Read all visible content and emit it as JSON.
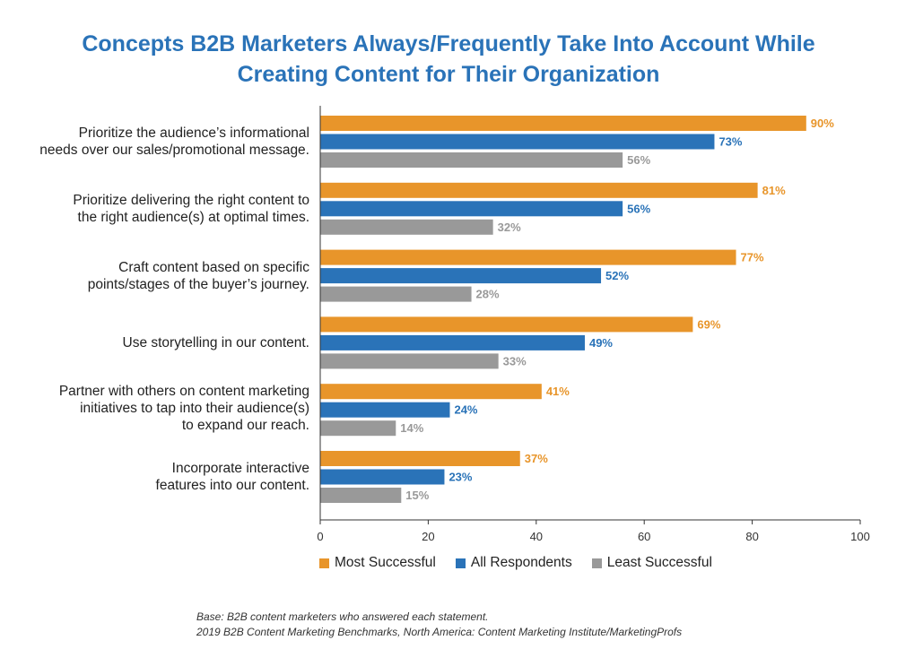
{
  "title_line1": "Concepts B2B Marketers Always/Frequently Take Into Account While",
  "title_line2": "Creating Content for Their Organization",
  "chart_data": {
    "type": "bar",
    "orientation": "horizontal",
    "categories": [
      [
        "Prioritize the audience’s informational",
        "needs over our sales/promotional message."
      ],
      [
        "Prioritize delivering the right content to",
        "the right audience(s) at optimal times."
      ],
      [
        "Craft content based on specific",
        "points/stages of the buyer’s journey."
      ],
      [
        "Use storytelling in our content."
      ],
      [
        "Partner with others on content marketing",
        "initiatives to tap into their audience(s)",
        "to expand our reach."
      ],
      [
        "Incorporate interactive",
        "features into our content."
      ]
    ],
    "series": [
      {
        "name": "Most Successful",
        "color": "#e8952a",
        "values": [
          90,
          81,
          77,
          69,
          41,
          37
        ]
      },
      {
        "name": "All Respondents",
        "color": "#2a73b8",
        "values": [
          73,
          56,
          52,
          49,
          24,
          23
        ]
      },
      {
        "name": "Least Successful",
        "color": "#999999",
        "values": [
          56,
          32,
          28,
          33,
          14,
          15
        ]
      }
    ],
    "value_suffix": "%",
    "xlim": [
      0,
      100
    ],
    "xticks": [
      0,
      20,
      40,
      60,
      80,
      100
    ],
    "grid": false,
    "legend_position": "bottom"
  },
  "footnote_line1": "Base: B2B content marketers who answered each statement.",
  "footnote_line2": "2019 B2B Content Marketing Benchmarks, North America: Content Marketing Institute/MarketingProfs"
}
